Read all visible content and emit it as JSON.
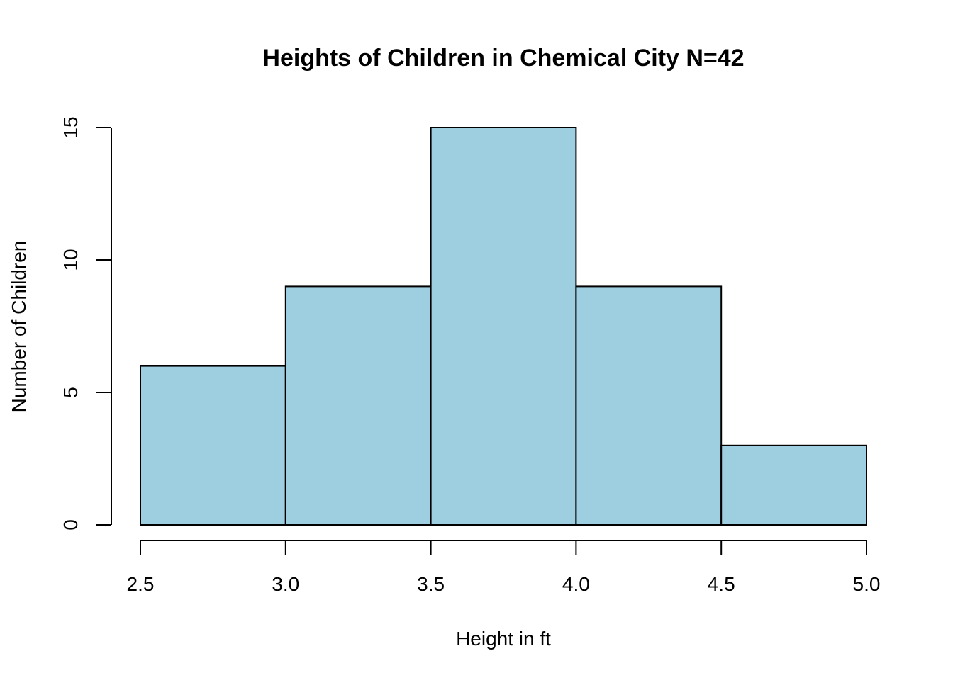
{
  "chart_data": {
    "type": "bar",
    "title": "Heights of Children in Chemical City N=42",
    "xlabel": "Height in ft",
    "ylabel": "Number of Children",
    "bins": [
      {
        "start": 2.5,
        "end": 3.0,
        "count": 6
      },
      {
        "start": 3.0,
        "end": 3.5,
        "count": 9
      },
      {
        "start": 3.5,
        "end": 4.0,
        "count": 15
      },
      {
        "start": 4.0,
        "end": 4.5,
        "count": 9
      },
      {
        "start": 4.5,
        "end": 5.0,
        "count": 3
      }
    ],
    "xlim": [
      2.5,
      5.0
    ],
    "ylim": [
      0,
      15
    ],
    "x_ticks": [
      "2.5",
      "3.0",
      "3.5",
      "4.0",
      "4.5",
      "5.0"
    ],
    "y_ticks": [
      "0",
      "5",
      "10",
      "15"
    ],
    "grid": false,
    "bar_color": "#9ecfe0",
    "edge_color": "#000000"
  }
}
